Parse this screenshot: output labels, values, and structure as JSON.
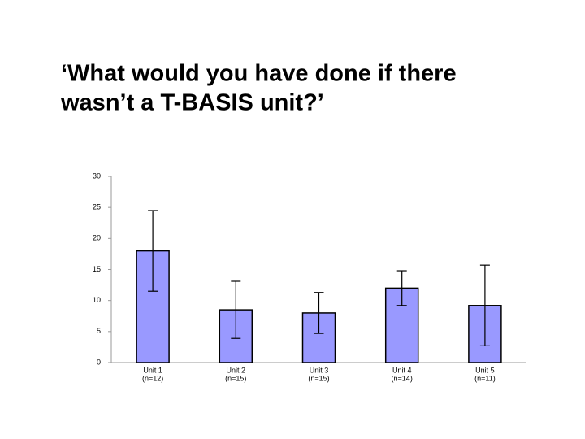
{
  "chart_data": {
    "type": "bar",
    "title": [
      "‘What would you have done if there",
      "wasn’t a T-BASIS unit?’"
    ],
    "categories": [
      [
        "Unit 1",
        "(n=12)"
      ],
      [
        "Unit 2",
        "(n=15)"
      ],
      [
        "Unit 3",
        "(n=15)"
      ],
      [
        "Unit 4",
        "(n=14)"
      ],
      [
        "Unit 5",
        "(n=11)"
      ]
    ],
    "values": [
      18,
      8.5,
      8,
      12,
      9.2
    ],
    "errors": [
      6.5,
      4.6,
      3.3,
      2.8,
      6.5
    ],
    "color": "#9999ff",
    "ylim": [
      0,
      30
    ],
    "yticks": [
      0,
      5,
      10,
      15,
      20,
      25,
      30
    ],
    "grid": false
  }
}
